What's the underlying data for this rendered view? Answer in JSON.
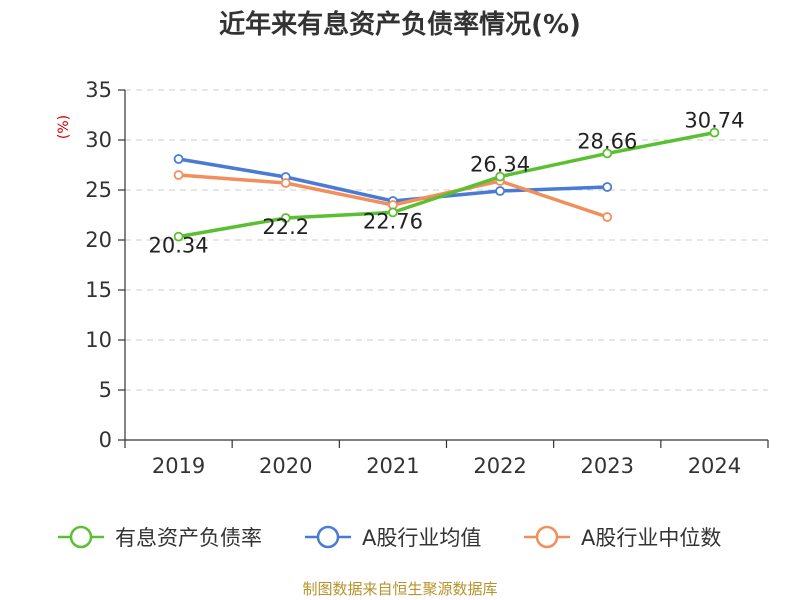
{
  "chart_data": {
    "type": "line",
    "title": "近年来有息资产负债率情况(%)",
    "ylabel": "(%)",
    "xlabel": "",
    "categories": [
      "2019",
      "2020",
      "2021",
      "2022",
      "2023",
      "2024"
    ],
    "ylim": [
      0,
      35
    ],
    "yticks": [
      "0",
      "5",
      "10",
      "15",
      "20",
      "25",
      "30",
      "35"
    ],
    "grid": true,
    "legend_position": "bottom",
    "series": [
      {
        "name": "有息资产负债率",
        "color": "#5ac032",
        "values": [
          20.34,
          22.2,
          22.76,
          26.34,
          28.66,
          30.74
        ],
        "labels": [
          "20.34",
          "22.2",
          "22.76",
          "26.34",
          "28.66",
          "30.74"
        ]
      },
      {
        "name": "A股行业均值",
        "color": "#4a7bd4",
        "values": [
          28.1,
          26.3,
          23.9,
          24.9,
          25.3,
          null
        ]
      },
      {
        "name": "A股行业中位数",
        "color": "#f28e5b",
        "values": [
          26.5,
          25.7,
          23.5,
          25.9,
          22.3,
          null
        ]
      }
    ]
  },
  "source": "制图数据来自恒生聚源数据库"
}
